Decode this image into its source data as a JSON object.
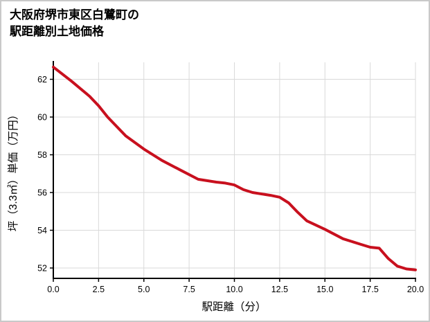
{
  "title": {
    "line1": "大阪府堺市東区白鷺町の",
    "line2": "駅距離別土地価格"
  },
  "chart_data": {
    "type": "line",
    "title": "大阪府堺市東区白鷺町の駅距離別土地価格",
    "xlabel": "駅距離（分）",
    "ylabel": "坪（3.3㎡）単価（万円）",
    "xlim": [
      0,
      20
    ],
    "ylim": [
      51.45,
      62.9
    ],
    "x_ticks": [
      0,
      2.5,
      5,
      7.5,
      10,
      12.5,
      15,
      17.5,
      20
    ],
    "x_tick_labels": [
      "0.0",
      "2.5",
      "5.0",
      "7.5",
      "10.0",
      "12.5",
      "15.0",
      "17.5",
      "20.0"
    ],
    "y_ticks": [
      52,
      54,
      56,
      58,
      60,
      62
    ],
    "y_tick_labels": [
      "52",
      "54",
      "56",
      "58",
      "60",
      "62"
    ],
    "grid": true,
    "legend": "none",
    "series": [
      {
        "name": "坪単価（万円）",
        "x": [
          0,
          1,
          2,
          2.5,
          3,
          4,
          5,
          6,
          7,
          8,
          9,
          9.5,
          10,
          10.5,
          11,
          12,
          12.5,
          13,
          13.5,
          14,
          15,
          16,
          17,
          17.5,
          18,
          18.5,
          19,
          19.5,
          20
        ],
        "y": [
          62.65,
          61.9,
          61.1,
          60.6,
          60.0,
          59.0,
          58.3,
          57.7,
          57.2,
          56.7,
          56.55,
          56.5,
          56.4,
          56.15,
          56.0,
          55.85,
          55.75,
          55.45,
          54.95,
          54.5,
          54.05,
          53.55,
          53.25,
          53.1,
          53.05,
          52.5,
          52.1,
          51.95,
          51.9
        ],
        "color": "#c8101e"
      }
    ],
    "colors": {
      "line": "#c8101e",
      "grid": "#d9d9d9",
      "axis": "#000000",
      "text": "#000000",
      "background": "#ffffff"
    }
  }
}
